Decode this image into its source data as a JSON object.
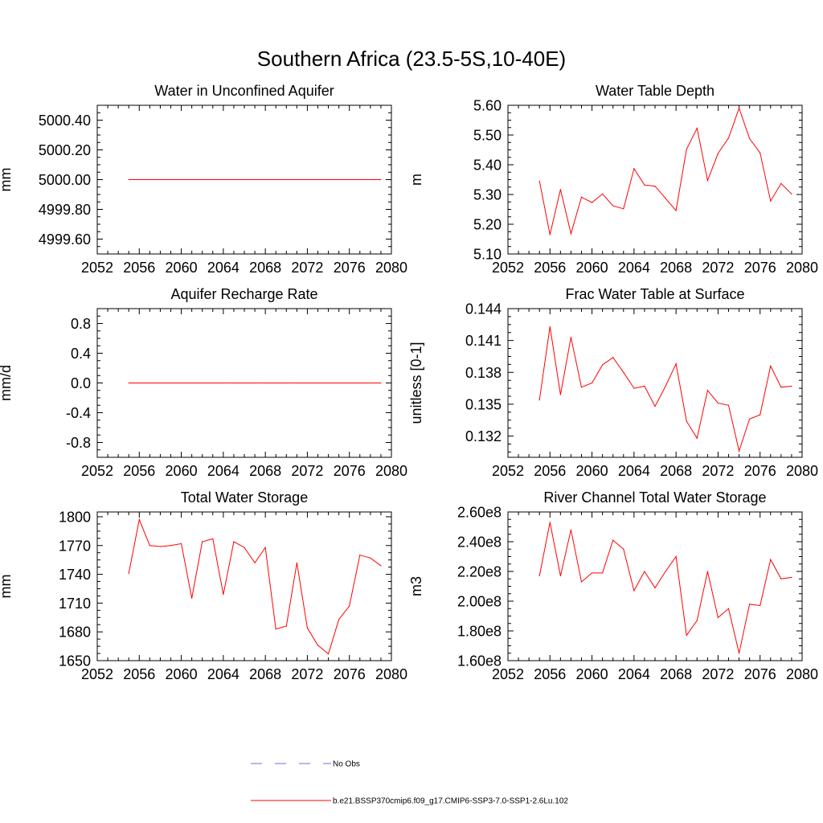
{
  "title": "Southern Africa (23.5-5S,10-40E)",
  "colors": {
    "model": "#ff0000",
    "obs": "#6d6de0",
    "axis": "#000000"
  },
  "legend": {
    "obs_label": "No Obs",
    "model_label": "b.e21.BSSP370cmip6.f09_g17.CMIP6-SSP3-7.0-SSP1-2.6Lu.102"
  },
  "chart_data": [
    {
      "type": "line",
      "title": "Water in Unconfined Aquifer",
      "xlabel": "",
      "ylabel": "mm",
      "xlim": [
        2052,
        2080
      ],
      "ylim": [
        4999.5,
        5000.5
      ],
      "xticks": [
        2052,
        2056,
        2060,
        2064,
        2068,
        2072,
        2076,
        2080
      ],
      "xtick_labels": [
        "2052",
        "2056",
        "2060",
        "2064",
        "2068",
        "2072",
        "2076",
        "2080"
      ],
      "yticks": [
        4999.6,
        4999.8,
        5000.0,
        5000.2,
        5000.4
      ],
      "ytick_labels": [
        "4999.60",
        "4999.80",
        "5000.00",
        "5000.20",
        "5000.40"
      ],
      "series": [
        {
          "x": [
            2055,
            2056,
            2057,
            2058,
            2059,
            2060,
            2061,
            2062,
            2063,
            2064,
            2065,
            2066,
            2067,
            2068,
            2069,
            2070,
            2071,
            2072,
            2073,
            2074,
            2075,
            2076,
            2077,
            2078,
            2079
          ],
          "y": [
            5000,
            5000,
            5000,
            5000,
            5000,
            5000,
            5000,
            5000,
            5000,
            5000,
            5000,
            5000,
            5000,
            5000,
            5000,
            5000,
            5000,
            5000,
            5000,
            5000,
            5000,
            5000,
            5000,
            5000,
            5000
          ]
        }
      ]
    },
    {
      "type": "line",
      "title": "Water Table Depth",
      "xlabel": "",
      "ylabel": "m",
      "xlim": [
        2052,
        2080
      ],
      "ylim": [
        5.1,
        5.6
      ],
      "xticks": [
        2052,
        2056,
        2060,
        2064,
        2068,
        2072,
        2076,
        2080
      ],
      "xtick_labels": [
        "2052",
        "2056",
        "2060",
        "2064",
        "2068",
        "2072",
        "2076",
        "2080"
      ],
      "yticks": [
        5.1,
        5.2,
        5.3,
        5.4,
        5.5,
        5.6
      ],
      "ytick_labels": [
        "5.10",
        "5.20",
        "5.30",
        "5.40",
        "5.50",
        "5.60"
      ],
      "series": [
        {
          "x": [
            2055,
            2056,
            2057,
            2058,
            2059,
            2060,
            2061,
            2062,
            2063,
            2064,
            2065,
            2066,
            2067,
            2068,
            2069,
            2070,
            2071,
            2072,
            2073,
            2074,
            2075,
            2076,
            2077,
            2078,
            2079
          ],
          "y": [
            5.345,
            5.165,
            5.317,
            5.168,
            5.291,
            5.273,
            5.302,
            5.262,
            5.252,
            5.387,
            5.332,
            5.328,
            5.287,
            5.246,
            5.452,
            5.523,
            5.347,
            5.438,
            5.49,
            5.59,
            5.488,
            5.44,
            5.278,
            5.337,
            5.302
          ]
        }
      ]
    },
    {
      "type": "line",
      "title": "Aquifer Recharge Rate",
      "xlabel": "",
      "ylabel": "mm/d",
      "xlim": [
        2052,
        2080
      ],
      "ylim": [
        -1.0,
        1.0
      ],
      "xticks": [
        2052,
        2056,
        2060,
        2064,
        2068,
        2072,
        2076,
        2080
      ],
      "xtick_labels": [
        "2052",
        "2056",
        "2060",
        "2064",
        "2068",
        "2072",
        "2076",
        "2080"
      ],
      "yticks": [
        -0.8,
        -0.4,
        0.0,
        0.4,
        0.8
      ],
      "ytick_labels": [
        "-0.8",
        "-0.4",
        "0.0",
        "0.4",
        "0.8"
      ],
      "series": [
        {
          "x": [
            2055,
            2056,
            2057,
            2058,
            2059,
            2060,
            2061,
            2062,
            2063,
            2064,
            2065,
            2066,
            2067,
            2068,
            2069,
            2070,
            2071,
            2072,
            2073,
            2074,
            2075,
            2076,
            2077,
            2078,
            2079
          ],
          "y": [
            0,
            0,
            0,
            0,
            0,
            0,
            0,
            0,
            0,
            0,
            0,
            0,
            0,
            0,
            0,
            0,
            0,
            0,
            0,
            0,
            0,
            0,
            0,
            0,
            0
          ]
        }
      ]
    },
    {
      "type": "line",
      "title": "Frac Water Table at Surface",
      "xlabel": "",
      "ylabel": "unitless [0-1]",
      "xlim": [
        2052,
        2080
      ],
      "ylim": [
        0.13,
        0.144
      ],
      "xticks": [
        2052,
        2056,
        2060,
        2064,
        2068,
        2072,
        2076,
        2080
      ],
      "xtick_labels": [
        "2052",
        "2056",
        "2060",
        "2064",
        "2068",
        "2072",
        "2076",
        "2080"
      ],
      "yticks": [
        0.132,
        0.135,
        0.138,
        0.141,
        0.144
      ],
      "ytick_labels": [
        "0.132",
        "0.135",
        "0.138",
        "0.141",
        "0.144"
      ],
      "series": [
        {
          "x": [
            2055,
            2056,
            2057,
            2058,
            2059,
            2060,
            2061,
            2062,
            2063,
            2064,
            2065,
            2066,
            2067,
            2068,
            2069,
            2070,
            2071,
            2072,
            2073,
            2074,
            2075,
            2076,
            2077,
            2078,
            2079
          ],
          "y": [
            0.1354,
            0.1423,
            0.1359,
            0.1413,
            0.1366,
            0.137,
            0.1387,
            0.1394,
            0.138,
            0.1365,
            0.1367,
            0.1348,
            0.1367,
            0.1388,
            0.1334,
            0.1318,
            0.1363,
            0.1351,
            0.1349,
            0.1306,
            0.1336,
            0.134,
            0.1386,
            0.1366,
            0.1367
          ]
        }
      ]
    },
    {
      "type": "line",
      "title": "Total Water Storage",
      "xlabel": "",
      "ylabel": "mm",
      "xlim": [
        2052,
        2080
      ],
      "ylim": [
        1650,
        1805
      ],
      "xticks": [
        2052,
        2056,
        2060,
        2064,
        2068,
        2072,
        2076,
        2080
      ],
      "xtick_labels": [
        "2052",
        "2056",
        "2060",
        "2064",
        "2068",
        "2072",
        "2076",
        "2080"
      ],
      "yticks": [
        1650,
        1680,
        1710,
        1740,
        1770,
        1800
      ],
      "ytick_labels": [
        "1650",
        "1680",
        "1710",
        "1740",
        "1770",
        "1800"
      ],
      "series": [
        {
          "x": [
            2055,
            2056,
            2057,
            2058,
            2059,
            2060,
            2061,
            2062,
            2063,
            2064,
            2065,
            2066,
            2067,
            2068,
            2069,
            2070,
            2071,
            2072,
            2073,
            2074,
            2075,
            2076,
            2077,
            2078,
            2079
          ],
          "y": [
            1741,
            1797,
            1770,
            1769,
            1770,
            1772,
            1715,
            1774,
            1777,
            1719,
            1774,
            1768,
            1752,
            1768,
            1683,
            1686,
            1752,
            1684,
            1666,
            1657,
            1693,
            1707,
            1760,
            1757,
            1749
          ]
        }
      ]
    },
    {
      "type": "line",
      "title": "River Channel Total Water Storage",
      "xlabel": "",
      "ylabel": "m3",
      "xlim": [
        2052,
        2080
      ],
      "ylim": [
        160000000.0,
        260000000.0
      ],
      "xticks": [
        2052,
        2056,
        2060,
        2064,
        2068,
        2072,
        2076,
        2080
      ],
      "xtick_labels": [
        "2052",
        "2056",
        "2060",
        "2064",
        "2068",
        "2072",
        "2076",
        "2080"
      ],
      "yticks": [
        160000000.0,
        180000000.0,
        200000000.0,
        220000000.0,
        240000000.0,
        260000000.0
      ],
      "ytick_labels": [
        "1.60e8",
        "1.80e8",
        "2.00e8",
        "2.20e8",
        "2.40e8",
        "2.60e8"
      ],
      "series": [
        {
          "x": [
            2055,
            2056,
            2057,
            2058,
            2059,
            2060,
            2061,
            2062,
            2063,
            2064,
            2065,
            2066,
            2067,
            2068,
            2069,
            2070,
            2071,
            2072,
            2073,
            2074,
            2075,
            2076,
            2077,
            2078,
            2079
          ],
          "y": [
            217000000.0,
            253000000.0,
            217000000.0,
            248000000.0,
            213000000.0,
            219000000.0,
            219000000.0,
            241000000.0,
            235000000.0,
            207000000.0,
            220000000.0,
            209000000.0,
            220000000.0,
            230000000.0,
            177000000.0,
            187000000.0,
            220000000.0,
            189000000.0,
            195000000.0,
            165000000.0,
            198000000.0,
            197000000.0,
            228000000.0,
            215000000.0,
            216000000.0
          ]
        }
      ]
    }
  ]
}
